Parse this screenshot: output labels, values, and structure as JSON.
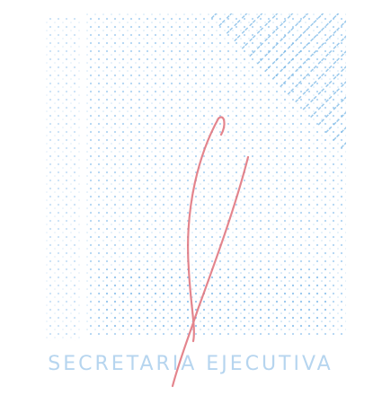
{
  "stamp": {
    "text": "SECRETARIA EJECUTIVA"
  }
}
